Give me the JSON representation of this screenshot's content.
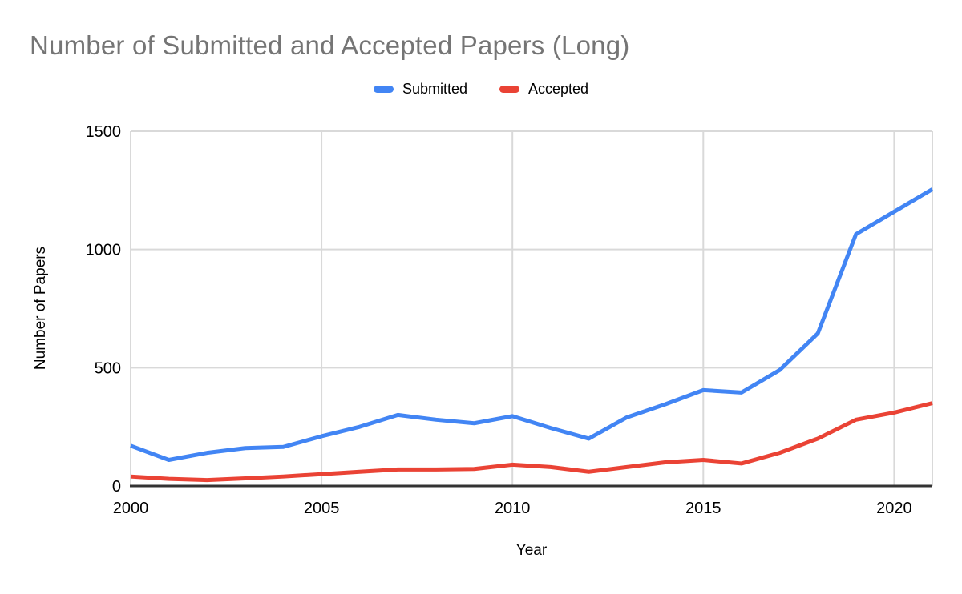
{
  "title": "Number of Submitted and Accepted Papers (Long)",
  "colors": {
    "title": "#757575",
    "grid": "#d9d9d9",
    "axis": "#333333",
    "tick_text": "#000000",
    "background": "#ffffff",
    "submitted": "#4285F4",
    "accepted": "#EA4335"
  },
  "chart_data": {
    "type": "line",
    "title": "Number of Submitted and Accepted Papers (Long)",
    "xlabel": "Year",
    "ylabel": "Number of Papers",
    "x": [
      2000,
      2001,
      2002,
      2003,
      2004,
      2005,
      2006,
      2007,
      2008,
      2009,
      2010,
      2011,
      2012,
      2013,
      2014,
      2015,
      2016,
      2017,
      2018,
      2019,
      2020,
      2021
    ],
    "series": [
      {
        "name": "Submitted",
        "color": "#4285F4",
        "values": [
          170,
          110,
          140,
          160,
          165,
          210,
          250,
          300,
          280,
          265,
          295,
          245,
          200,
          290,
          345,
          405,
          395,
          490,
          645,
          1065,
          1160,
          1255
        ]
      },
      {
        "name": "Accepted",
        "color": "#EA4335",
        "values": [
          40,
          30,
          25,
          32,
          40,
          50,
          60,
          70,
          70,
          72,
          90,
          80,
          60,
          80,
          100,
          110,
          95,
          140,
          200,
          280,
          310,
          350
        ]
      }
    ],
    "xticks": [
      2000,
      2005,
      2010,
      2015,
      2020
    ],
    "yticks": [
      0,
      500,
      1000,
      1500
    ],
    "xlim": [
      2000,
      2021
    ],
    "ylim": [
      0,
      1500
    ],
    "grid": true,
    "legend_position": "top"
  }
}
